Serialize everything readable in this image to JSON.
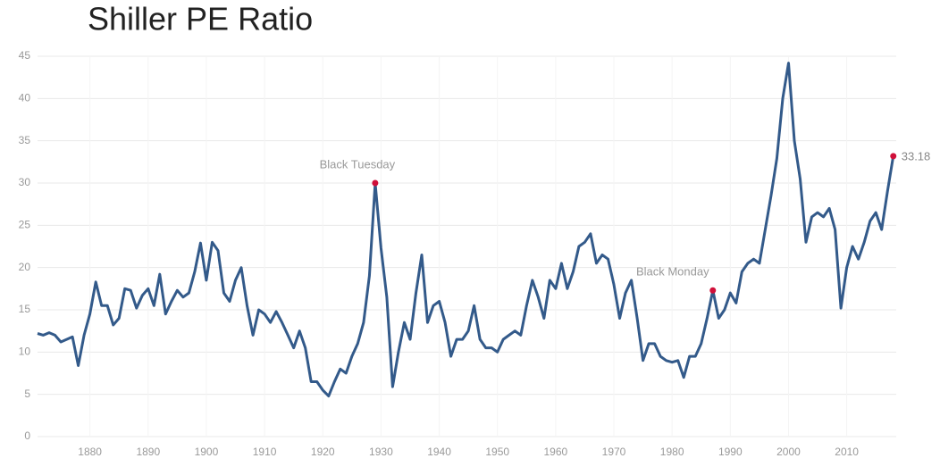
{
  "chart_data": {
    "type": "line",
    "title": "Shiller PE Ratio",
    "x": [
      1871,
      1872,
      1873,
      1874,
      1875,
      1876,
      1877,
      1878,
      1879,
      1880,
      1881,
      1882,
      1883,
      1884,
      1885,
      1886,
      1887,
      1888,
      1889,
      1890,
      1891,
      1892,
      1893,
      1894,
      1895,
      1896,
      1897,
      1898,
      1899,
      1900,
      1901,
      1902,
      1903,
      1904,
      1905,
      1906,
      1907,
      1908,
      1909,
      1910,
      1911,
      1912,
      1913,
      1914,
      1915,
      1916,
      1917,
      1918,
      1919,
      1920,
      1921,
      1922,
      1923,
      1924,
      1925,
      1926,
      1927,
      1928,
      1929,
      1930,
      1931,
      1932,
      1933,
      1934,
      1935,
      1936,
      1937,
      1938,
      1939,
      1940,
      1941,
      1942,
      1943,
      1944,
      1945,
      1946,
      1947,
      1948,
      1949,
      1950,
      1951,
      1952,
      1953,
      1954,
      1955,
      1956,
      1957,
      1958,
      1959,
      1960,
      1961,
      1962,
      1963,
      1964,
      1965,
      1966,
      1967,
      1968,
      1969,
      1970,
      1971,
      1972,
      1973,
      1974,
      1975,
      1976,
      1977,
      1978,
      1979,
      1980,
      1981,
      1982,
      1983,
      1984,
      1985,
      1986,
      1987,
      1988,
      1989,
      1990,
      1991,
      1992,
      1993,
      1994,
      1995,
      1996,
      1997,
      1998,
      1999,
      2000,
      2001,
      2002,
      2003,
      2004,
      2005,
      2006,
      2007,
      2008,
      2009,
      2010,
      2011,
      2012,
      2013,
      2014,
      2015,
      2016,
      2017,
      2018
    ],
    "series": [
      {
        "name": "Shiller PE Ratio",
        "color": "#335a8a",
        "values": [
          12.2,
          12.0,
          12.3,
          12.0,
          11.2,
          11.5,
          11.8,
          8.4,
          12.0,
          14.5,
          18.3,
          15.5,
          15.5,
          13.2,
          14.0,
          17.5,
          17.3,
          15.2,
          16.7,
          17.5,
          15.5,
          19.2,
          14.5,
          16.0,
          17.3,
          16.5,
          17.0,
          19.5,
          22.9,
          18.5,
          23.0,
          22.0,
          17.0,
          16.0,
          18.5,
          20.0,
          15.5,
          12.0,
          15.0,
          14.5,
          13.5,
          14.8,
          13.5,
          12.0,
          10.5,
          12.5,
          10.5,
          6.5,
          6.5,
          5.5,
          4.8,
          6.5,
          8.0,
          7.5,
          9.5,
          11.0,
          13.5,
          19.0,
          30.0,
          22.3,
          16.5,
          5.9,
          10.0,
          13.5,
          11.5,
          17.0,
          21.5,
          13.5,
          15.5,
          16.0,
          13.5,
          9.5,
          11.5,
          11.5,
          12.5,
          15.5,
          11.5,
          10.5,
          10.5,
          10.0,
          11.5,
          12.0,
          12.5,
          12.0,
          15.5,
          18.5,
          16.5,
          14.0,
          18.5,
          17.5,
          20.5,
          17.5,
          19.5,
          22.5,
          23.0,
          24.0,
          20.5,
          21.5,
          21.0,
          18.0,
          14.0,
          17.0,
          18.5,
          14.0,
          9.0,
          11.0,
          11.0,
          9.5,
          9.0,
          8.8,
          9.0,
          7.0,
          9.5,
          9.5,
          11.0,
          14.0,
          17.3,
          14.0,
          15.0,
          17.0,
          15.8,
          19.5,
          20.5,
          21.0,
          20.5,
          24.5,
          28.5,
          32.9,
          40.0,
          44.2,
          35.0,
          30.5,
          23.0,
          26.0,
          26.5,
          26.0,
          27.0,
          24.5,
          15.2,
          20.0,
          22.5,
          21.0,
          23.0,
          25.5,
          26.5,
          24.5,
          29.0,
          33.18
        ]
      }
    ],
    "annotations": [
      {
        "x": 1929,
        "text": "Black Tuesday"
      },
      {
        "x": 1987,
        "text": "Black Monday"
      },
      {
        "x": 2018,
        "text": "33.18"
      }
    ],
    "marker_color": "#d0103a",
    "xlim": [
      1871,
      2018.5
    ],
    "xticks": [
      1880,
      1890,
      1900,
      1910,
      1920,
      1930,
      1940,
      1950,
      1960,
      1970,
      1980,
      1990,
      2000,
      2010
    ],
    "ylim": [
      0,
      45
    ],
    "yticks": [
      0,
      5,
      10,
      15,
      20,
      25,
      30,
      35,
      40,
      45
    ],
    "grid": true
  }
}
